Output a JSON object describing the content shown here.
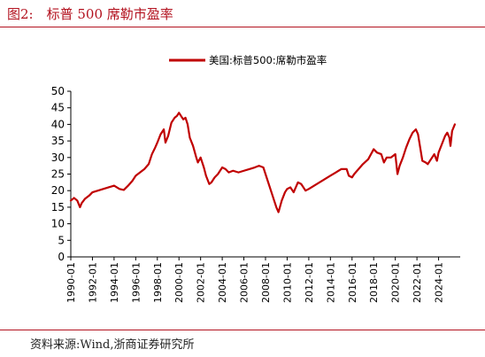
{
  "figure": {
    "title": "图2:　标普 500 席勒市盈率",
    "source": "资料来源:Wind,浙商证券研究所"
  },
  "chart_data": {
    "type": "line",
    "title": "标普 500 席勒市盈率",
    "xlabel": "",
    "ylabel": "",
    "ylim": [
      0,
      50
    ],
    "yticks": [
      0,
      5,
      10,
      15,
      20,
      25,
      30,
      35,
      40,
      45,
      50
    ],
    "xlim": [
      1990.0,
      2026.0
    ],
    "xticks": [
      "1990-01",
      "1992-01",
      "1994-01",
      "1996-01",
      "1998-01",
      "2000-01",
      "2002-01",
      "2004-01",
      "2006-01",
      "2008-01",
      "2010-01",
      "2012-01",
      "2014-01",
      "2016-01",
      "2018-01",
      "2020-01",
      "2022-01",
      "2024-01"
    ],
    "grid": false,
    "legend": "top-center",
    "series": [
      {
        "name": "美国:标普500:席勒市盈率",
        "color": "#c00000",
        "x": [
          1990.0,
          1990.3,
          1990.6,
          1990.85,
          1991.0,
          1991.3,
          1991.7,
          1992.0,
          1992.5,
          1993.0,
          1993.5,
          1994.0,
          1994.5,
          1994.9,
          1995.3,
          1995.7,
          1996.0,
          1996.4,
          1996.8,
          1997.2,
          1997.5,
          1997.8,
          1998.0,
          1998.3,
          1998.6,
          1998.75,
          1999.0,
          1999.3,
          1999.6,
          1999.8,
          2000.0,
          2000.2,
          2000.4,
          2000.6,
          2000.8,
          2001.0,
          2001.3,
          2001.6,
          2001.75,
          2002.0,
          2002.3,
          2002.5,
          2002.8,
          2003.0,
          2003.3,
          2003.6,
          2004.0,
          2004.3,
          2004.6,
          2005.0,
          2005.5,
          2006.0,
          2006.5,
          2007.0,
          2007.4,
          2007.8,
          2008.2,
          2008.5,
          2008.8,
          2009.0,
          2009.2,
          2009.5,
          2009.8,
          2010.0,
          2010.3,
          2010.6,
          2011.0,
          2011.3,
          2011.7,
          2012.0,
          2012.5,
          2013.0,
          2013.5,
          2014.0,
          2014.5,
          2015.0,
          2015.5,
          2015.7,
          2016.0,
          2016.2,
          2016.6,
          2017.0,
          2017.5,
          2018.0,
          2018.3,
          2018.7,
          2018.95,
          2019.2,
          2019.6,
          2020.0,
          2020.2,
          2020.4,
          2020.7,
          2021.0,
          2021.3,
          2021.6,
          2021.9,
          2022.1,
          2022.3,
          2022.5,
          2022.8,
          2023.0,
          2023.3,
          2023.6,
          2023.85,
          2024.0,
          2024.3,
          2024.6,
          2024.8,
          2025.0,
          2025.1,
          2025.25,
          2025.5
        ],
        "values": [
          17.0,
          17.8,
          17.0,
          15.0,
          16.2,
          17.5,
          18.5,
          19.5,
          20.0,
          20.5,
          21.0,
          21.5,
          20.5,
          20.2,
          21.5,
          23.0,
          24.5,
          25.5,
          26.5,
          28.0,
          31.0,
          33.0,
          34.5,
          37.0,
          38.5,
          34.5,
          36.5,
          40.5,
          42.0,
          42.5,
          43.5,
          42.5,
          41.5,
          42.0,
          40.0,
          36.0,
          33.5,
          30.0,
          28.5,
          30.0,
          27.0,
          24.5,
          22.0,
          22.5,
          24.0,
          25.0,
          27.0,
          26.5,
          25.5,
          26.0,
          25.5,
          26.0,
          26.5,
          27.0,
          27.5,
          27.0,
          23.0,
          20.0,
          17.0,
          15.0,
          13.5,
          17.0,
          19.5,
          20.5,
          21.0,
          19.5,
          22.5,
          22.0,
          20.0,
          20.5,
          21.5,
          22.5,
          23.5,
          24.5,
          25.5,
          26.5,
          26.5,
          24.5,
          24.0,
          25.0,
          26.5,
          28.0,
          29.5,
          32.5,
          31.5,
          31.0,
          28.5,
          30.0,
          30.0,
          31.0,
          25.0,
          27.5,
          30.0,
          33.0,
          35.5,
          37.5,
          38.5,
          37.0,
          33.0,
          29.0,
          28.5,
          28.0,
          29.5,
          31.0,
          29.0,
          31.5,
          34.0,
          36.5,
          37.5,
          36.0,
          33.5,
          38.0,
          40.0
        ]
      }
    ]
  }
}
